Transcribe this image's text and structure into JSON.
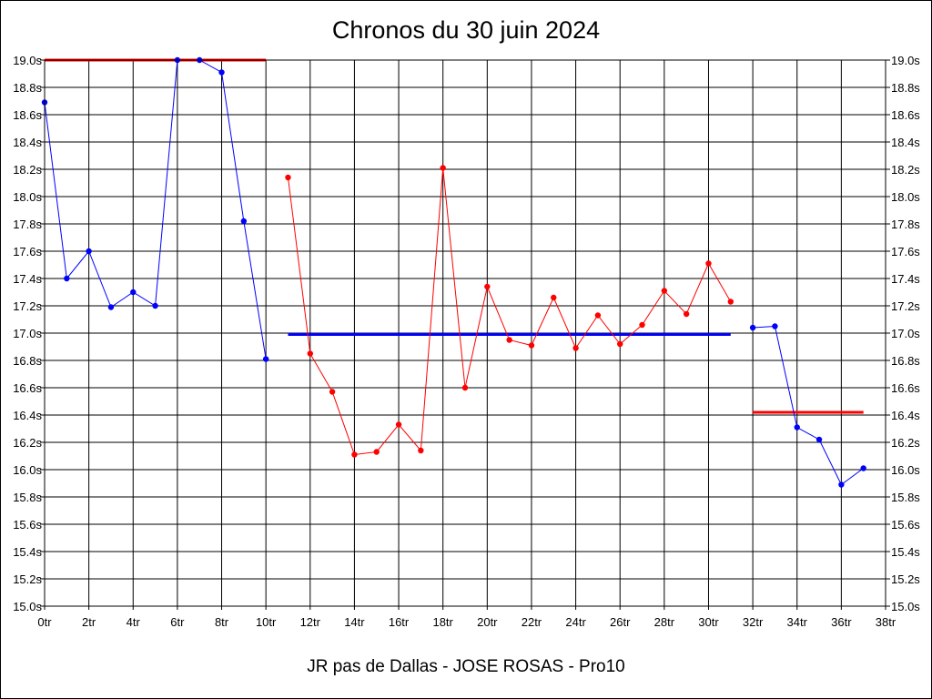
{
  "chart_data": {
    "type": "line",
    "title": "Chronos du 30 juin 2024",
    "subtitle": "JR pas de Dallas - JOSE ROSAS - Pro10",
    "xlabel": "",
    "ylabel": "",
    "xlim": [
      0,
      38
    ],
    "ylim": [
      15.0,
      19.0
    ],
    "grid": true,
    "y_tick_suffix": "s",
    "x_tick_suffix": "tr",
    "y_ticks": [
      "15.0s",
      "15.2s",
      "15.4s",
      "15.6s",
      "15.8s",
      "16.0s",
      "16.2s",
      "16.4s",
      "16.6s",
      "16.8s",
      "17.0s",
      "17.2s",
      "17.4s",
      "17.6s",
      "17.8s",
      "18.0s",
      "18.2s",
      "18.4s",
      "18.6s",
      "18.8s",
      "19.0s"
    ],
    "x_ticks": [
      "0tr",
      "2tr",
      "4tr",
      "6tr",
      "8tr",
      "10tr",
      "12tr",
      "14tr",
      "16tr",
      "18tr",
      "20tr",
      "22tr",
      "24tr",
      "26tr",
      "28tr",
      "30tr",
      "32tr",
      "34tr",
      "36tr",
      "38tr"
    ],
    "series": [
      {
        "color": "#0000ff",
        "x": [
          0,
          1,
          2,
          3,
          4,
          5,
          6,
          7,
          8,
          9,
          10
        ],
        "values": [
          18.69,
          17.4,
          17.6,
          17.19,
          17.3,
          17.2,
          19.0,
          19.0,
          18.91,
          17.82,
          16.81
        ]
      },
      {
        "color": "#ff0000",
        "x": [
          11,
          12,
          13,
          14,
          15,
          16,
          17,
          18,
          19,
          20,
          21,
          22,
          23,
          24,
          25,
          26,
          27,
          28,
          29,
          30,
          31
        ],
        "values": [
          18.14,
          16.85,
          16.57,
          16.11,
          16.13,
          16.33,
          16.14,
          18.21,
          16.6,
          17.34,
          16.95,
          16.91,
          17.26,
          16.89,
          17.13,
          16.92,
          17.06,
          17.31,
          17.14,
          17.51,
          17.23
        ]
      },
      {
        "color": "#0000ff",
        "x": [
          32,
          33,
          34,
          35,
          36,
          37
        ],
        "values": [
          17.04,
          17.05,
          16.31,
          16.22,
          15.89,
          16.01
        ]
      }
    ],
    "reference_lines": [
      {
        "color": "#ff0000",
        "x": [
          0,
          10
        ],
        "value": 19.0
      },
      {
        "color": "#0000ff",
        "x": [
          11,
          31
        ],
        "value": 16.99
      },
      {
        "color": "#ff0000",
        "x": [
          32,
          37
        ],
        "value": 16.42
      }
    ]
  }
}
